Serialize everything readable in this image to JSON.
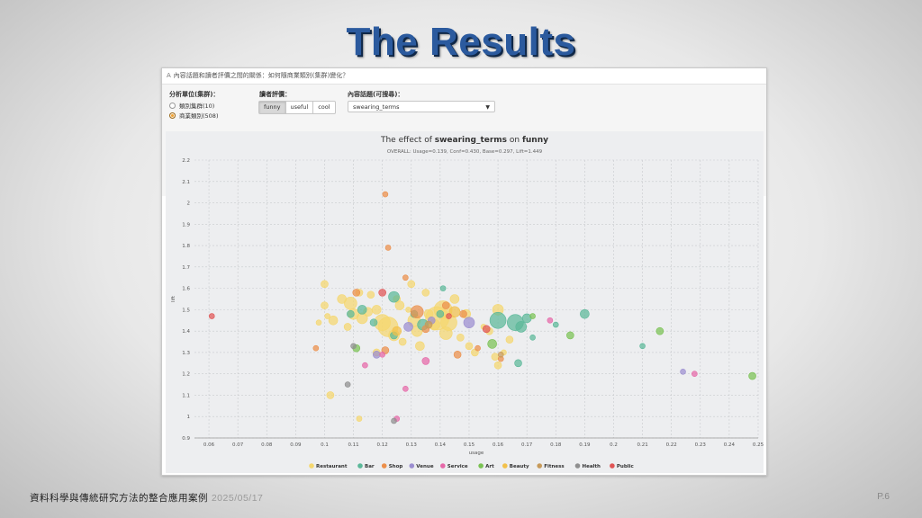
{
  "slide": {
    "title": "The Results",
    "footer": "資料科學與傳統研究方法的整合應用案例",
    "date": "2025/05/17",
    "page": "P.6"
  },
  "panel": {
    "header_icon": "A",
    "header_text": "內容話題和讀者評價之間的關係：如何隨商業類別(集群)變化？",
    "unit_label": "分析單位(集群)：",
    "unit_options": [
      "類別集群(10)",
      "商業類別(508)"
    ],
    "unit_selected": 1,
    "rating_label": "讀者評價：",
    "rating_options": [
      "funny",
      "useful",
      "cool"
    ],
    "rating_selected": 0,
    "topic_label": "內容話題(可搜尋)：",
    "topic_value": "swearing_terms"
  },
  "chart_data": {
    "type": "scatter",
    "title_pre": "The effect of ",
    "title_topic": "swearing_terms",
    "title_mid": " on ",
    "title_rating": "funny",
    "subtitle": "OVERALL: Usage=0.139, Conf=0.430, Base=0.297, Lift=1.449",
    "xlabel": "usage",
    "ylabel": "lift",
    "xlim": [
      0.055,
      0.25
    ],
    "ylim": [
      0.9,
      2.2
    ],
    "xticks": [
      0.06,
      0.07,
      0.08,
      0.09,
      0.1,
      0.11,
      0.12,
      0.13,
      0.14,
      0.15,
      0.16,
      0.17,
      0.18,
      0.19,
      0.2,
      0.21,
      0.22,
      0.23,
      0.24,
      0.25
    ],
    "yticks": [
      0.9,
      1,
      1.1,
      1.2,
      1.3,
      1.4,
      1.5,
      1.6,
      1.7,
      1.8,
      1.9,
      2,
      2.1,
      2.2
    ],
    "grid": true,
    "legend_position": "bottom",
    "series": [
      {
        "name": "Restaurant",
        "color": "#f5d76e",
        "points": [
          [
            0.1,
            1.62,
            4
          ],
          [
            0.098,
            1.44,
            3
          ],
          [
            0.1,
            1.52,
            4
          ],
          [
            0.101,
            1.47,
            3
          ],
          [
            0.103,
            1.45,
            5
          ],
          [
            0.106,
            1.55,
            5
          ],
          [
            0.109,
            1.53,
            7
          ],
          [
            0.11,
            1.48,
            6
          ],
          [
            0.112,
            1.58,
            4
          ],
          [
            0.113,
            1.46,
            6
          ],
          [
            0.115,
            1.49,
            5
          ],
          [
            0.116,
            1.57,
            4
          ],
          [
            0.118,
            1.5,
            5
          ],
          [
            0.12,
            1.44,
            9
          ],
          [
            0.122,
            1.42,
            11
          ],
          [
            0.124,
            1.38,
            6
          ],
          [
            0.126,
            1.52,
            5
          ],
          [
            0.127,
            1.35,
            4
          ],
          [
            0.13,
            1.62,
            4
          ],
          [
            0.131,
            1.45,
            7
          ],
          [
            0.132,
            1.4,
            6
          ],
          [
            0.133,
            1.33,
            5
          ],
          [
            0.135,
            1.58,
            4
          ],
          [
            0.136,
            1.48,
            5
          ],
          [
            0.138,
            1.43,
            6
          ],
          [
            0.139,
            1.46,
            13
          ],
          [
            0.141,
            1.5,
            10
          ],
          [
            0.142,
            1.39,
            7
          ],
          [
            0.143,
            1.44,
            9
          ],
          [
            0.145,
            1.55,
            5
          ],
          [
            0.147,
            1.37,
            4
          ],
          [
            0.149,
            1.48,
            5
          ],
          [
            0.15,
            1.33,
            4
          ],
          [
            0.152,
            1.3,
            4
          ],
          [
            0.155,
            1.42,
            3
          ],
          [
            0.157,
            1.4,
            4
          ],
          [
            0.159,
            1.28,
            4
          ],
          [
            0.16,
            1.24,
            4
          ],
          [
            0.16,
            1.5,
            6
          ],
          [
            0.162,
            1.3,
            3
          ],
          [
            0.164,
            1.36,
            4
          ],
          [
            0.102,
            1.1,
            4
          ],
          [
            0.112,
            0.99,
            3
          ],
          [
            0.118,
            1.3,
            4
          ],
          [
            0.108,
            1.42,
            4
          ],
          [
            0.125,
            1.55,
            4
          ],
          [
            0.129,
            1.5,
            3
          ]
        ]
      },
      {
        "name": "Bar",
        "color": "#5bb899",
        "points": [
          [
            0.124,
            1.56,
            6
          ],
          [
            0.109,
            1.48,
            4
          ],
          [
            0.113,
            1.5,
            5
          ],
          [
            0.131,
            1.48,
            4
          ],
          [
            0.134,
            1.43,
            6
          ],
          [
            0.14,
            1.48,
            4
          ],
          [
            0.141,
            1.6,
            3
          ],
          [
            0.16,
            1.45,
            9
          ],
          [
            0.166,
            1.44,
            9
          ],
          [
            0.168,
            1.42,
            6
          ],
          [
            0.17,
            1.46,
            5
          ],
          [
            0.172,
            1.37,
            3
          ],
          [
            0.167,
            1.25,
            4
          ],
          [
            0.18,
            1.43,
            3
          ],
          [
            0.19,
            1.48,
            5
          ],
          [
            0.21,
            1.33,
            3
          ],
          [
            0.124,
            1.38,
            4
          ],
          [
            0.117,
            1.44,
            4
          ]
        ]
      },
      {
        "name": "Shop",
        "color": "#ec8f4a",
        "points": [
          [
            0.121,
            2.04,
            3
          ],
          [
            0.122,
            1.79,
            3
          ],
          [
            0.128,
            1.65,
            3
          ],
          [
            0.132,
            1.49,
            7
          ],
          [
            0.135,
            1.41,
            4
          ],
          [
            0.097,
            1.32,
            3
          ],
          [
            0.111,
            1.58,
            4
          ],
          [
            0.142,
            1.52,
            4
          ],
          [
            0.146,
            1.29,
            4
          ],
          [
            0.148,
            1.48,
            4
          ],
          [
            0.153,
            1.32,
            3
          ],
          [
            0.161,
            1.27,
            3
          ],
          [
            0.121,
            1.31,
            4
          ]
        ]
      },
      {
        "name": "Venue",
        "color": "#9b8ed0",
        "points": [
          [
            0.129,
            1.42,
            5
          ],
          [
            0.15,
            1.44,
            6
          ],
          [
            0.118,
            1.29,
            4
          ],
          [
            0.224,
            1.21,
            3
          ],
          [
            0.137,
            1.45,
            4
          ]
        ]
      },
      {
        "name": "Service",
        "color": "#e668a8",
        "points": [
          [
            0.135,
            1.26,
            4
          ],
          [
            0.114,
            1.24,
            3
          ],
          [
            0.128,
            1.13,
            3
          ],
          [
            0.178,
            1.45,
            3
          ],
          [
            0.228,
            1.2,
            3
          ],
          [
            0.125,
            0.99,
            3
          ],
          [
            0.12,
            1.29,
            3
          ]
        ]
      },
      {
        "name": "Art",
        "color": "#7ac253",
        "points": [
          [
            0.216,
            1.4,
            4
          ],
          [
            0.248,
            1.19,
            4
          ],
          [
            0.185,
            1.38,
            4
          ],
          [
            0.111,
            1.32,
            4
          ],
          [
            0.172,
            1.47,
            3
          ],
          [
            0.158,
            1.34,
            5
          ]
        ]
      },
      {
        "name": "Beauty",
        "color": "#f2c04a",
        "points": [
          [
            0.125,
            1.4,
            5
          ],
          [
            0.145,
            1.49,
            6
          ]
        ]
      },
      {
        "name": "Fitness",
        "color": "#c79a5a",
        "points": [
          [
            0.161,
            1.29,
            3
          ],
          [
            0.136,
            1.43,
            4
          ]
        ]
      },
      {
        "name": "Health",
        "color": "#8f8f8f",
        "points": [
          [
            0.108,
            1.15,
            3
          ],
          [
            0.124,
            0.98,
            3
          ],
          [
            0.11,
            1.33,
            3
          ]
        ]
      },
      {
        "name": "Public",
        "color": "#e05555",
        "points": [
          [
            0.061,
            1.47,
            3
          ],
          [
            0.12,
            1.58,
            4
          ],
          [
            0.156,
            1.41,
            4
          ],
          [
            0.143,
            1.47,
            3
          ]
        ]
      }
    ]
  }
}
